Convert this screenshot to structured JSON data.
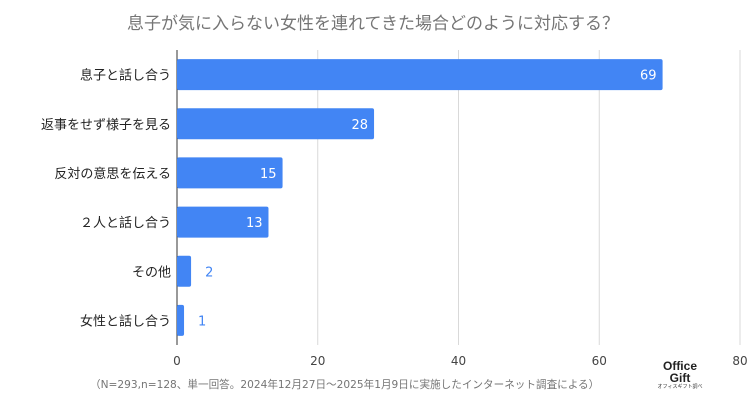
{
  "chart_data": {
    "type": "bar",
    "orientation": "horizontal",
    "title": "息子が気に入らない女性を連れてきた場合どのように対応する？",
    "categories": [
      "息子と話し合う",
      "返事をせず様子を見る",
      "反対の意思を伝える",
      "２人と話し合う",
      "その他",
      "女性と話し合う"
    ],
    "values": [
      69,
      28,
      15,
      13,
      2,
      1
    ],
    "xlim": [
      0,
      80
    ],
    "xticks": [
      0,
      20,
      40,
      60,
      80
    ],
    "grid": true,
    "bar_color": "#4285f4",
    "label_color_inside": "#ffffff",
    "label_color_outside": "#4285f4",
    "footnote": "（N=293,n=128、単一回答。2024年12月27日〜2025年1月9日に実施したインターネット調査による）"
  },
  "logo": {
    "line1": "Office",
    "line2": "Gift",
    "line3": "オフィスギフト調べ"
  }
}
